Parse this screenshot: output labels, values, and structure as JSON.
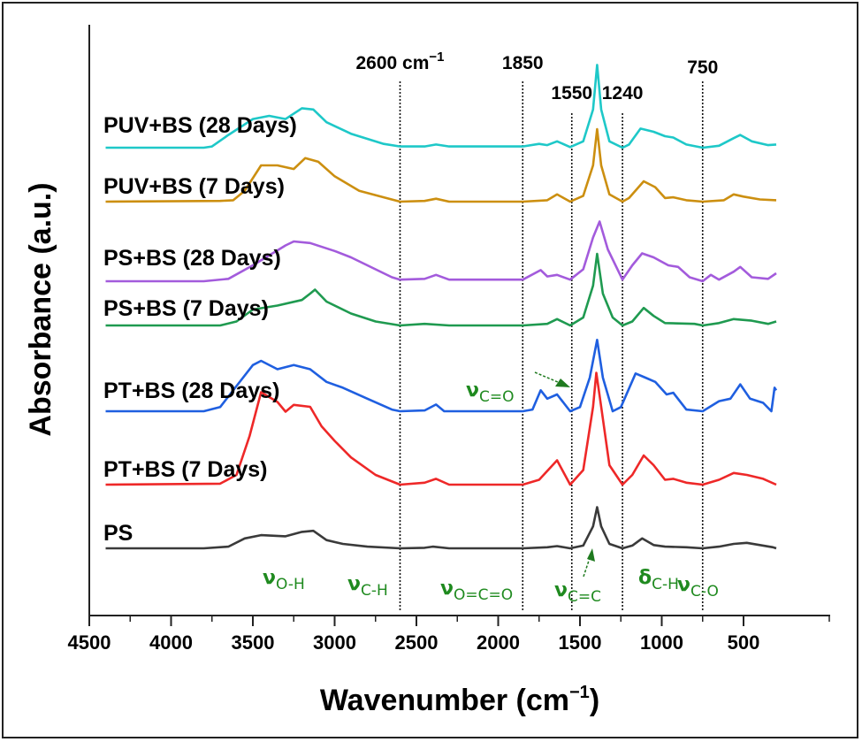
{
  "chart_data": {
    "type": "line",
    "title": "",
    "xlabel": "Wavenumber (cm",
    "xlabel_sup": "−1",
    "xlabel_close": ")",
    "ylabel": "Absorbance  (a.u.)",
    "xlim": [
      4500,
      300
    ],
    "x_reversed": true,
    "xticks": [
      4500,
      4000,
      3500,
      3000,
      2500,
      2000,
      1500,
      1000,
      500
    ],
    "xtick_labels": [
      "4500",
      "4000",
      "3500",
      "3000",
      "2500",
      "2000",
      "1500",
      "1000",
      "500"
    ],
    "grid": false,
    "legend": "inline-left",
    "reference_lines": [
      {
        "x": 2600,
        "label": "2600 cm",
        "sup": "−1"
      },
      {
        "x": 1850,
        "label": "1850",
        "sup": ""
      },
      {
        "x": 1550,
        "label": "1550",
        "sup": ""
      },
      {
        "x": 1240,
        "label": "1240",
        "sup": ""
      },
      {
        "x": 750,
        "label": "750",
        "sup": ""
      }
    ],
    "band_annotations": [
      {
        "symbol": "ν",
        "sub": "O-H",
        "x": 3350
      },
      {
        "symbol": "ν",
        "sub": "C-H",
        "x": 2850
      },
      {
        "symbol": "ν",
        "sub": "O=C=O",
        "x": 2250
      },
      {
        "symbol": "ν",
        "sub": "C=C",
        "x": 1720
      },
      {
        "symbol": "δ",
        "sub": "C-H",
        "x": 1400
      },
      {
        "symbol": "ν",
        "sub": "C-O",
        "x": 1050
      },
      {
        "symbol": "ν",
        "sub": "C=O",
        "x": 2050
      }
    ],
    "series": [
      {
        "name": "PUV+BS (28 Days)",
        "color": "#1ec8c8",
        "offset": 6,
        "points": [
          [
            4400,
            0
          ],
          [
            3800,
            0
          ],
          [
            3750,
            0.02
          ],
          [
            3650,
            0.2
          ],
          [
            3500,
            0.45
          ],
          [
            3400,
            0.5
          ],
          [
            3300,
            0.45
          ],
          [
            3200,
            0.62
          ],
          [
            3130,
            0.6
          ],
          [
            3050,
            0.4
          ],
          [
            2900,
            0.22
          ],
          [
            2700,
            0.06
          ],
          [
            2600,
            0.02
          ],
          [
            2450,
            0.02
          ],
          [
            2380,
            0.05
          ],
          [
            2300,
            0.02
          ],
          [
            1850,
            0.02
          ],
          [
            1750,
            0.06
          ],
          [
            1700,
            0.04
          ],
          [
            1640,
            0.1
          ],
          [
            1560,
            0.01
          ],
          [
            1480,
            0.1
          ],
          [
            1420,
            0.6
          ],
          [
            1395,
            1.3
          ],
          [
            1370,
            0.6
          ],
          [
            1320,
            0.1
          ],
          [
            1240,
            0.0
          ],
          [
            1200,
            0.05
          ],
          [
            1130,
            0.3
          ],
          [
            1050,
            0.25
          ],
          [
            980,
            0.18
          ],
          [
            930,
            0.16
          ],
          [
            850,
            0.05
          ],
          [
            750,
            0.0
          ],
          [
            650,
            0.03
          ],
          [
            560,
            0.15
          ],
          [
            520,
            0.2
          ],
          [
            450,
            0.1
          ],
          [
            350,
            0.04
          ],
          [
            300,
            0.05
          ]
        ]
      },
      {
        "name": "PUV+BS (7 Days)",
        "color": "#cc8f10",
        "offset": 5,
        "points": [
          [
            4400,
            0
          ],
          [
            3700,
            0.01
          ],
          [
            3620,
            0.02
          ],
          [
            3550,
            0.15
          ],
          [
            3450,
            0.5
          ],
          [
            3350,
            0.5
          ],
          [
            3250,
            0.45
          ],
          [
            3180,
            0.6
          ],
          [
            3100,
            0.55
          ],
          [
            3000,
            0.35
          ],
          [
            2850,
            0.15
          ],
          [
            2700,
            0.06
          ],
          [
            2600,
            0.0
          ],
          [
            2450,
            0.01
          ],
          [
            2380,
            0.04
          ],
          [
            2300,
            0.0
          ],
          [
            1850,
            0.0
          ],
          [
            1700,
            0.02
          ],
          [
            1640,
            0.1
          ],
          [
            1560,
            0.0
          ],
          [
            1480,
            0.08
          ],
          [
            1420,
            0.5
          ],
          [
            1395,
            1.0
          ],
          [
            1370,
            0.5
          ],
          [
            1320,
            0.1
          ],
          [
            1240,
            0.0
          ],
          [
            1200,
            0.05
          ],
          [
            1110,
            0.28
          ],
          [
            1040,
            0.2
          ],
          [
            980,
            0.05
          ],
          [
            930,
            0.06
          ],
          [
            850,
            0.02
          ],
          [
            750,
            0.0
          ],
          [
            620,
            0.02
          ],
          [
            560,
            0.1
          ],
          [
            500,
            0.07
          ],
          [
            400,
            0.03
          ],
          [
            300,
            0.02
          ]
        ]
      },
      {
        "name": "PS+BS (28 Days)",
        "color": "#a35bdc",
        "offset": 4,
        "points": [
          [
            4400,
            0
          ],
          [
            3800,
            0
          ],
          [
            3650,
            0.03
          ],
          [
            3500,
            0.2
          ],
          [
            3300,
            0.45
          ],
          [
            3250,
            0.5
          ],
          [
            3150,
            0.48
          ],
          [
            3000,
            0.38
          ],
          [
            2900,
            0.3
          ],
          [
            2800,
            0.2
          ],
          [
            2650,
            0.05
          ],
          [
            2600,
            0.02
          ],
          [
            2450,
            0.03
          ],
          [
            2380,
            0.08
          ],
          [
            2300,
            0.02
          ],
          [
            1850,
            0.02
          ],
          [
            1740,
            0.14
          ],
          [
            1700,
            0.06
          ],
          [
            1640,
            0.08
          ],
          [
            1560,
            0.02
          ],
          [
            1480,
            0.15
          ],
          [
            1420,
            0.55
          ],
          [
            1380,
            0.75
          ],
          [
            1330,
            0.4
          ],
          [
            1240,
            0.02
          ],
          [
            1180,
            0.2
          ],
          [
            1120,
            0.35
          ],
          [
            1050,
            0.3
          ],
          [
            960,
            0.2
          ],
          [
            900,
            0.18
          ],
          [
            830,
            0.05
          ],
          [
            750,
            0.0
          ],
          [
            700,
            0.08
          ],
          [
            650,
            0.02
          ],
          [
            560,
            0.12
          ],
          [
            520,
            0.18
          ],
          [
            450,
            0.05
          ],
          [
            350,
            0.03
          ],
          [
            300,
            0.1
          ]
        ]
      },
      {
        "name": "PS+BS (7 Days)",
        "color": "#1f9a50",
        "offset": 3,
        "points": [
          [
            4400,
            0
          ],
          [
            3700,
            0
          ],
          [
            3600,
            0.05
          ],
          [
            3500,
            0.2
          ],
          [
            3350,
            0.25
          ],
          [
            3200,
            0.32
          ],
          [
            3150,
            0.4
          ],
          [
            3120,
            0.45
          ],
          [
            3050,
            0.3
          ],
          [
            2900,
            0.15
          ],
          [
            2750,
            0.05
          ],
          [
            2600,
            0.0
          ],
          [
            2450,
            0.02
          ],
          [
            2300,
            0.0
          ],
          [
            1850,
            0.0
          ],
          [
            1700,
            0.02
          ],
          [
            1640,
            0.08
          ],
          [
            1560,
            0.0
          ],
          [
            1480,
            0.1
          ],
          [
            1420,
            0.5
          ],
          [
            1395,
            0.9
          ],
          [
            1360,
            0.4
          ],
          [
            1300,
            0.1
          ],
          [
            1240,
            0.0
          ],
          [
            1180,
            0.05
          ],
          [
            1110,
            0.22
          ],
          [
            1050,
            0.12
          ],
          [
            980,
            0.03
          ],
          [
            800,
            0.02
          ],
          [
            750,
            0.0
          ],
          [
            650,
            0.03
          ],
          [
            560,
            0.08
          ],
          [
            450,
            0.06
          ],
          [
            350,
            0.02
          ],
          [
            300,
            0.05
          ]
        ]
      },
      {
        "name": "PT+BS (28 Days)",
        "color": "#1f5fe0",
        "offset": 2,
        "points": [
          [
            4400,
            0
          ],
          [
            3800,
            0
          ],
          [
            3700,
            0.05
          ],
          [
            3600,
            0.3
          ],
          [
            3500,
            0.55
          ],
          [
            3450,
            0.6
          ],
          [
            3350,
            0.5
          ],
          [
            3250,
            0.55
          ],
          [
            3150,
            0.5
          ],
          [
            3050,
            0.35
          ],
          [
            2950,
            0.28
          ],
          [
            2800,
            0.15
          ],
          [
            2650,
            0.02
          ],
          [
            2600,
            0.0
          ],
          [
            2450,
            0.01
          ],
          [
            2380,
            0.08
          ],
          [
            2330,
            0.0
          ],
          [
            1850,
            0.0
          ],
          [
            1790,
            0.02
          ],
          [
            1740,
            0.25
          ],
          [
            1700,
            0.15
          ],
          [
            1640,
            0.2
          ],
          [
            1560,
            0.0
          ],
          [
            1500,
            0.05
          ],
          [
            1440,
            0.4
          ],
          [
            1395,
            0.85
          ],
          [
            1360,
            0.4
          ],
          [
            1300,
            0.0
          ],
          [
            1250,
            0.05
          ],
          [
            1160,
            0.45
          ],
          [
            1100,
            0.4
          ],
          [
            1040,
            0.35
          ],
          [
            970,
            0.2
          ],
          [
            930,
            0.22
          ],
          [
            850,
            0.02
          ],
          [
            750,
            0.0
          ],
          [
            650,
            0.12
          ],
          [
            580,
            0.15
          ],
          [
            520,
            0.32
          ],
          [
            460,
            0.15
          ],
          [
            380,
            0.1
          ],
          [
            330,
            0.0
          ],
          [
            310,
            0.28
          ],
          [
            300,
            0.25
          ]
        ]
      },
      {
        "name": "PT+BS (7 Days)",
        "color": "#ee2828",
        "offset": 1,
        "points": [
          [
            4400,
            0
          ],
          [
            3700,
            0.01
          ],
          [
            3600,
            0.1
          ],
          [
            3520,
            0.5
          ],
          [
            3450,
            0.95
          ],
          [
            3350,
            0.85
          ],
          [
            3300,
            0.75
          ],
          [
            3250,
            0.82
          ],
          [
            3150,
            0.8
          ],
          [
            3080,
            0.6
          ],
          [
            3000,
            0.45
          ],
          [
            2900,
            0.28
          ],
          [
            2750,
            0.1
          ],
          [
            2600,
            0.0
          ],
          [
            2450,
            0.02
          ],
          [
            2380,
            0.06
          ],
          [
            2300,
            0.0
          ],
          [
            1850,
            0.0
          ],
          [
            1750,
            0.05
          ],
          [
            1640,
            0.25
          ],
          [
            1560,
            0.0
          ],
          [
            1480,
            0.15
          ],
          [
            1420,
            0.8
          ],
          [
            1400,
            1.15
          ],
          [
            1370,
            0.8
          ],
          [
            1320,
            0.2
          ],
          [
            1240,
            0.0
          ],
          [
            1180,
            0.1
          ],
          [
            1110,
            0.3
          ],
          [
            1050,
            0.2
          ],
          [
            980,
            0.05
          ],
          [
            930,
            0.06
          ],
          [
            850,
            0.02
          ],
          [
            750,
            0.0
          ],
          [
            650,
            0.05
          ],
          [
            560,
            0.12
          ],
          [
            480,
            0.1
          ],
          [
            380,
            0.06
          ],
          [
            300,
            0.0
          ]
        ]
      },
      {
        "name": "PS",
        "color": "#3a3a3a",
        "offset": 0,
        "points": [
          [
            4400,
            0
          ],
          [
            3800,
            0
          ],
          [
            3650,
            0.03
          ],
          [
            3550,
            0.18
          ],
          [
            3450,
            0.24
          ],
          [
            3300,
            0.22
          ],
          [
            3200,
            0.3
          ],
          [
            3130,
            0.32
          ],
          [
            3050,
            0.15
          ],
          [
            2950,
            0.08
          ],
          [
            2800,
            0.03
          ],
          [
            2600,
            0.0
          ],
          [
            2450,
            0.01
          ],
          [
            2400,
            0.03
          ],
          [
            2300,
            0.0
          ],
          [
            2150,
            0.0
          ],
          [
            1850,
            0.0
          ],
          [
            1700,
            0.02
          ],
          [
            1640,
            0.04
          ],
          [
            1560,
            0.0
          ],
          [
            1480,
            0.05
          ],
          [
            1420,
            0.4
          ],
          [
            1395,
            0.75
          ],
          [
            1370,
            0.4
          ],
          [
            1320,
            0.08
          ],
          [
            1240,
            0.0
          ],
          [
            1180,
            0.05
          ],
          [
            1120,
            0.18
          ],
          [
            1050,
            0.06
          ],
          [
            980,
            0.03
          ],
          [
            850,
            0.02
          ],
          [
            750,
            0.0
          ],
          [
            650,
            0.03
          ],
          [
            560,
            0.08
          ],
          [
            480,
            0.1
          ],
          [
            400,
            0.06
          ],
          [
            320,
            0.02
          ],
          [
            300,
            0.0
          ]
        ]
      }
    ]
  }
}
